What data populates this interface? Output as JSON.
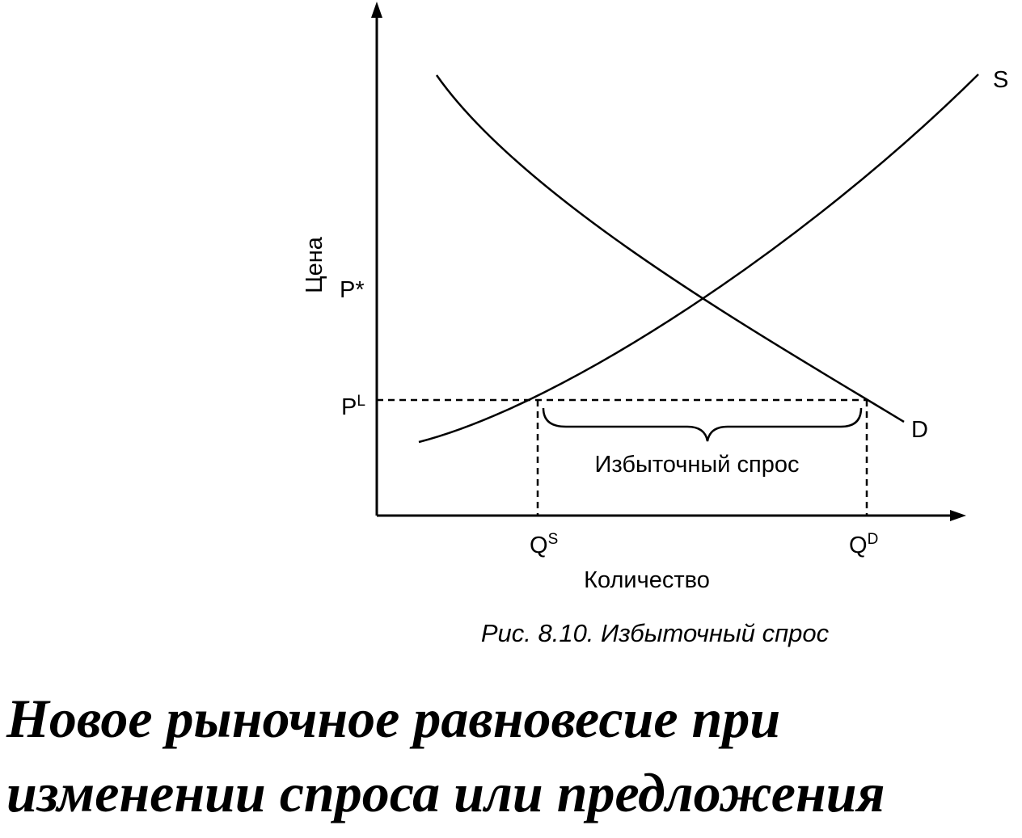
{
  "diagram": {
    "axes": {
      "y_label": "Цена",
      "x_label": "Количество"
    },
    "price_labels": {
      "equilibrium": "P*",
      "limit": {
        "main": "P",
        "sup": "L"
      }
    },
    "quantity_labels": {
      "supplied": {
        "main": "Q",
        "sup": "S"
      },
      "demanded": {
        "main": "Q",
        "sup": "D"
      }
    },
    "curves": {
      "supply": "S",
      "demand": "D"
    },
    "gap_label": "Избыточный спрос",
    "caption": "Рис. 8.10. Избыточный спрос"
  },
  "heading": {
    "lines": [
      "Новое рыночное равновесие при",
      "изменении спроса или предложения"
    ]
  }
}
